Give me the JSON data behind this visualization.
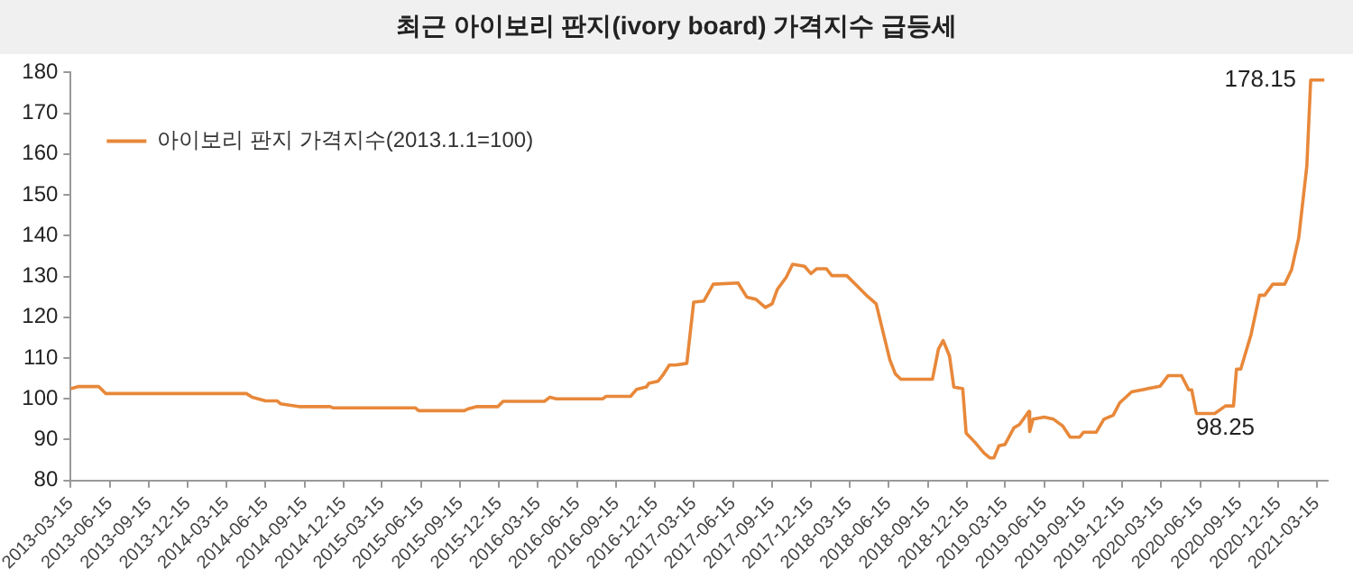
{
  "chart_data": {
    "type": "line",
    "title": "최근 아이보리 판지(ivory board) 가격지수 급등세",
    "x": [
      "2013-03-15",
      "2013-04-01",
      "2013-05-20",
      "2013-06-05",
      "2014-05-01",
      "2014-05-15",
      "2014-06-15",
      "2014-07-12",
      "2014-07-20",
      "2014-09-01",
      "2014-11-13",
      "2014-11-20",
      "2015-06-01",
      "2015-06-09",
      "2015-09-24",
      "2015-10-02",
      "2015-10-24",
      "2015-12-12",
      "2015-12-24",
      "2016-03-30",
      "2016-04-12",
      "2016-04-27",
      "2016-08-14",
      "2016-08-21",
      "2016-10-18",
      "2016-11-01",
      "2016-11-24",
      "2016-11-30",
      "2016-12-21",
      "2017-01-01",
      "2017-01-17",
      "2017-02-01",
      "2017-02-27",
      "2017-03-15",
      "2017-04-08",
      "2017-04-30",
      "2017-06-27",
      "2017-07-18",
      "2017-08-08",
      "2017-08-30",
      "2017-09-15",
      "2017-09-27",
      "2017-10-18",
      "2017-11-02",
      "2017-11-30",
      "2017-12-15",
      "2017-12-29",
      "2018-01-20",
      "2018-02-02",
      "2018-03-09",
      "2018-04-07",
      "2018-04-27",
      "2018-05-17",
      "2018-06-18",
      "2018-07-01",
      "2018-07-14",
      "2018-09-26",
      "2018-10-10",
      "2018-10-21",
      "2018-11-05",
      "2018-11-15",
      "2018-12-06",
      "2018-12-14",
      "2019-01-04",
      "2019-01-25",
      "2019-02-08",
      "2019-02-17",
      "2019-03-01",
      "2019-03-15",
      "2019-04-05",
      "2019-04-18",
      "2019-05-10",
      "2019-05-12",
      "2019-05-20",
      "2019-06-15",
      "2019-07-07",
      "2019-07-28",
      "2019-08-15",
      "2019-09-06",
      "2019-09-15",
      "2019-10-15",
      "2019-11-02",
      "2019-11-24",
      "2019-12-09",
      "2020-01-06",
      "2020-03-13",
      "2020-04-01",
      "2020-05-02",
      "2020-05-19",
      "2020-05-26",
      "2020-06-06",
      "2020-07-19",
      "2020-08-13",
      "2020-09-01",
      "2020-09-08",
      "2020-09-18",
      "2020-10-12",
      "2020-11-01",
      "2020-11-13",
      "2020-12-02",
      "2020-12-30",
      "2021-01-15",
      "2021-02-01",
      "2021-02-20",
      "2021-03-01",
      "2021-04-02"
    ],
    "series": [
      {
        "name": "아이보리 판지 가격지수(2013.1.1=100)",
        "color": "#e8883a",
        "values": [
          102.5,
          103,
          103,
          101.3,
          101.3,
          100.4,
          99.5,
          99.5,
          98.8,
          98.1,
          98.1,
          97.8,
          97.8,
          97.1,
          97.1,
          97.5,
          98.1,
          98.1,
          99.4,
          99.4,
          100.4,
          100,
          100,
          100.6,
          100.6,
          102.3,
          102.9,
          103.8,
          104.3,
          105.7,
          108.3,
          108.3,
          108.7,
          123.7,
          124,
          128.1,
          128.4,
          124.9,
          124.4,
          122.4,
          123.3,
          126.8,
          129.8,
          133,
          132.5,
          130.7,
          131.9,
          131.9,
          130.2,
          130.2,
          127.2,
          125.1,
          123.3,
          109.6,
          106.1,
          104.8,
          104.8,
          112.2,
          114.3,
          110.5,
          102.9,
          102.5,
          91.6,
          89.3,
          86.7,
          85.5,
          85.5,
          88.5,
          88.8,
          92.9,
          93.7,
          96.9,
          92,
          95,
          95.5,
          95,
          93.4,
          90.6,
          90.6,
          91.8,
          91.8,
          95,
          96,
          99,
          101.7,
          103.1,
          105.7,
          105.7,
          102.2,
          102.2,
          96.4,
          96.4,
          98.25,
          98.25,
          107.3,
          107.3,
          115.7,
          125.4,
          125.4,
          128.1,
          128.1,
          131.6,
          139.5,
          157.1,
          178.15,
          178.15
        ]
      }
    ],
    "xlim": [
      "2013-03-15",
      "2021-04-10"
    ],
    "xticks": [
      "2013-03-15",
      "2013-06-15",
      "2013-09-15",
      "2013-12-15",
      "2014-03-15",
      "2014-06-15",
      "2014-09-15",
      "2014-12-15",
      "2015-03-15",
      "2015-06-15",
      "2015-09-15",
      "2015-12-15",
      "2016-03-15",
      "2016-06-15",
      "2016-09-15",
      "2016-12-15",
      "2017-03-15",
      "2017-06-15",
      "2017-09-15",
      "2017-12-15",
      "2018-03-15",
      "2018-06-15",
      "2018-09-15",
      "2018-12-15",
      "2019-03-15",
      "2019-06-15",
      "2019-09-15",
      "2019-12-15",
      "2020-03-15",
      "2020-06-15",
      "2020-09-15",
      "2020-12-15",
      "2021-03-15"
    ],
    "ylim": [
      80,
      180
    ],
    "yticks": [
      80,
      90,
      100,
      110,
      120,
      130,
      140,
      150,
      160,
      170,
      180
    ],
    "annotations": [
      {
        "text": "178.15",
        "x": "2021-03-01",
        "y": 178.15
      },
      {
        "text": "98.25",
        "x": "2020-08-13",
        "y": 98.25
      }
    ],
    "grid": false,
    "legend": "top left",
    "marker": "none",
    "line_style": "solid"
  }
}
